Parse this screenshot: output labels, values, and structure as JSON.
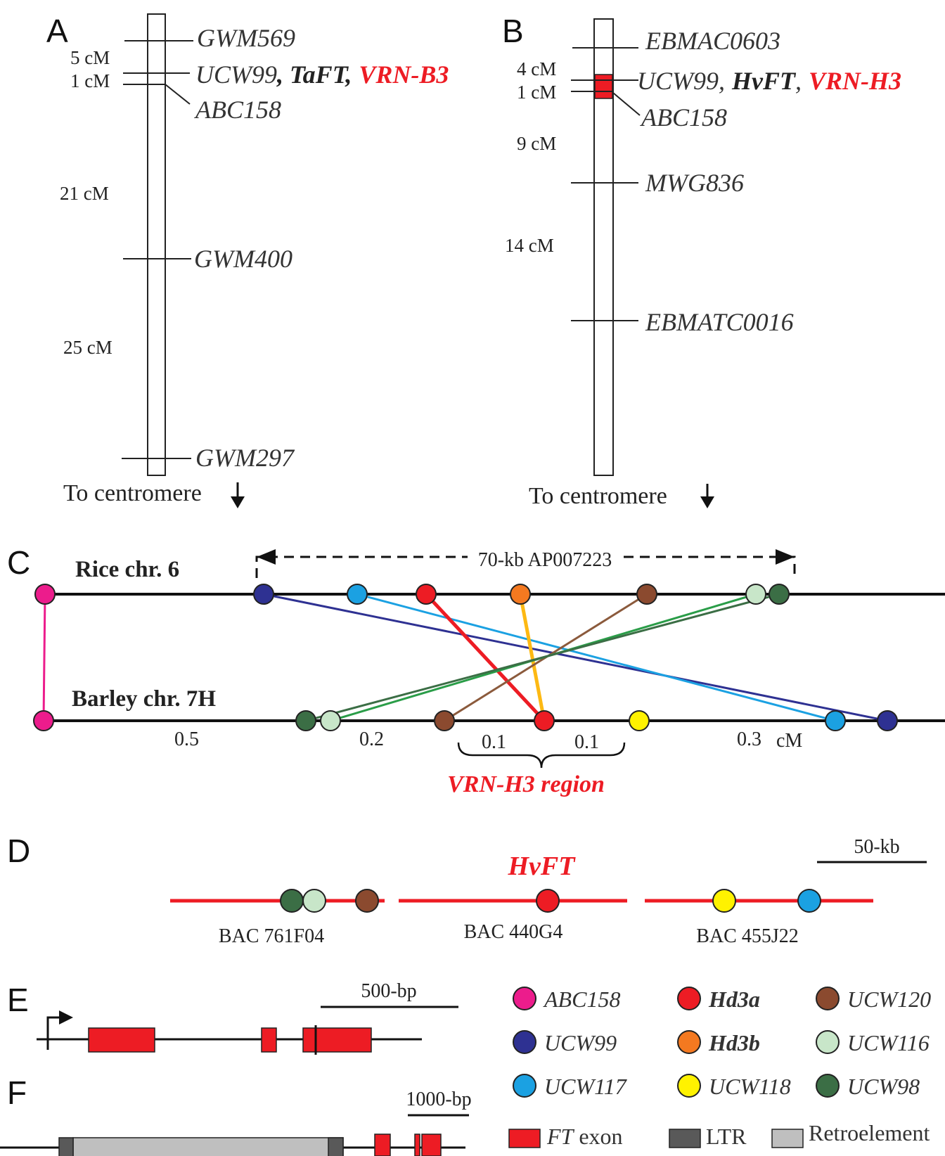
{
  "panels": {
    "a": "A",
    "b": "B",
    "c": "C",
    "d": "D",
    "e": "E",
    "f": "F"
  },
  "panel_a": {
    "markers": {
      "gwm569": "GWM569",
      "ucw99": "UCW99",
      "taft": ", TaFT,",
      "vrnb3": "VRN-B3",
      "abc158": "ABC158",
      "gwm400": "GWM400",
      "gwm297": "GWM297"
    },
    "distances": [
      "5 cM",
      "1 cM",
      "21 cM",
      "25 cM"
    ],
    "centromere": "To centromere"
  },
  "panel_b": {
    "markers": {
      "ebmac0603": "EBMAC0603",
      "ucw99": "UCW99,",
      "hvft": "HvFT",
      "comma": ",",
      "vrnh3": "VRN-H3",
      "abc158": "ABC158",
      "mwg836": "MWG836",
      "ebmatc0016": "EBMATC0016"
    },
    "distances": [
      "4 cM",
      "1 cM",
      "9 cM",
      "14 cM"
    ],
    "centromere": "To centromere"
  },
  "panel_c": {
    "rice_label": "Rice chr. 6",
    "barley_label": "Barley chr. 7H",
    "bac_label": "70-kb AP007223",
    "distances": [
      "0.5",
      "0.2",
      "0.1",
      "0.1",
      "0.3",
      "cM"
    ],
    "region_label": "VRN-H3 region"
  },
  "panel_d": {
    "gene_label": "HvFT",
    "scale_label": "50-kb",
    "bacs": [
      "BAC 761F04",
      "BAC 440G4",
      "BAC 455J22"
    ]
  },
  "panel_e": {
    "scale_label": "500-bp"
  },
  "panel_f": {
    "scale_label": "1000-bp"
  },
  "legend": {
    "markers": [
      {
        "label": "ABC158",
        "color": "#ec1c8c",
        "bold": false
      },
      {
        "label": "Hd3a",
        "color": "#ed1c24",
        "bold": true
      },
      {
        "label": "UCW120",
        "color": "#8b4a2f",
        "bold": false
      },
      {
        "label": "UCW99",
        "color": "#2e3192",
        "bold": false
      },
      {
        "label": "Hd3b",
        "color": "#f47920",
        "bold": true
      },
      {
        "label": "UCW116",
        "color": "#c8e6c9",
        "bold": false
      },
      {
        "label": "UCW117",
        "color": "#1ba1e2",
        "bold": false
      },
      {
        "label": "UCW118",
        "color": "#fff200",
        "bold": false
      },
      {
        "label": "UCW98",
        "color": "#3b6e45",
        "bold": false
      }
    ],
    "ft_exon_prefix": "FT",
    "ft_exon_suffix": " exon",
    "ltr": "LTR",
    "retroelement": "Retroelement",
    "swatch_colors": {
      "ft_exon": "#ed1c24",
      "ltr": "#595959",
      "retroelement": "#bfbfbf"
    }
  }
}
